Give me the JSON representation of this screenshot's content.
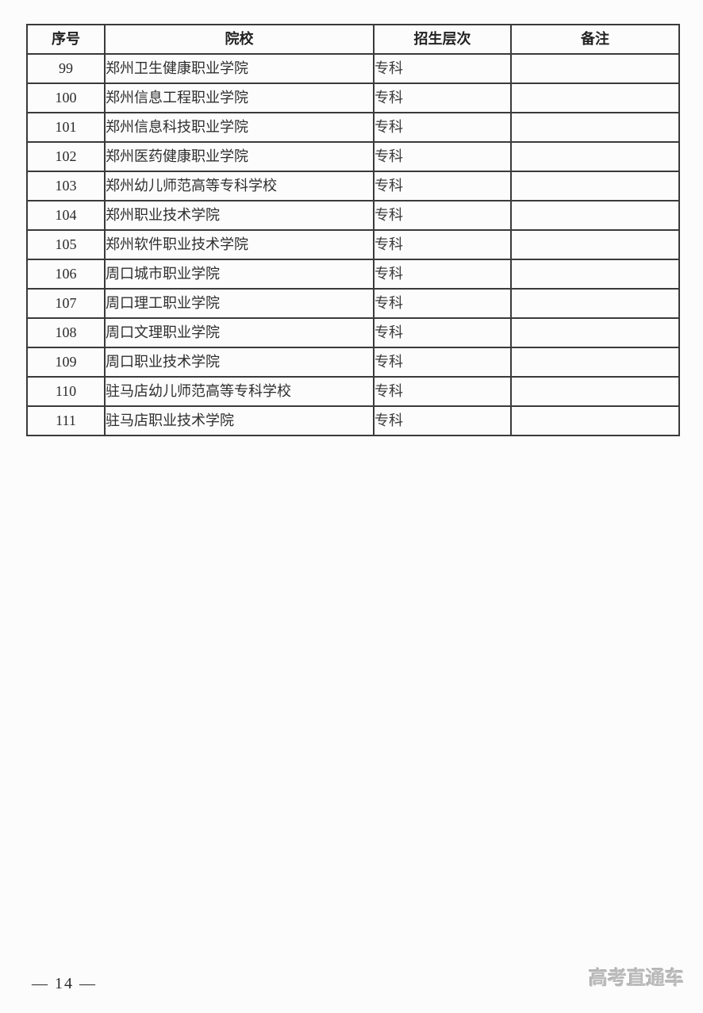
{
  "table": {
    "headers": [
      "序号",
      "院校",
      "招生层次",
      "备注"
    ],
    "rows": [
      {
        "no": "99",
        "school": "郑州卫生健康职业学院",
        "level": "专科",
        "remark": ""
      },
      {
        "no": "100",
        "school": "郑州信息工程职业学院",
        "level": "专科",
        "remark": ""
      },
      {
        "no": "101",
        "school": "郑州信息科技职业学院",
        "level": "专科",
        "remark": ""
      },
      {
        "no": "102",
        "school": "郑州医药健康职业学院",
        "level": "专科",
        "remark": ""
      },
      {
        "no": "103",
        "school": "郑州幼儿师范高等专科学校",
        "level": "专科",
        "remark": ""
      },
      {
        "no": "104",
        "school": "郑州职业技术学院",
        "level": "专科",
        "remark": ""
      },
      {
        "no": "105",
        "school": "郑州软件职业技术学院",
        "level": "专科",
        "remark": ""
      },
      {
        "no": "106",
        "school": "周口城市职业学院",
        "level": "专科",
        "remark": ""
      },
      {
        "no": "107",
        "school": "周口理工职业学院",
        "level": "专科",
        "remark": ""
      },
      {
        "no": "108",
        "school": "周口文理职业学院",
        "level": "专科",
        "remark": ""
      },
      {
        "no": "109",
        "school": "周口职业技术学院",
        "level": "专科",
        "remark": ""
      },
      {
        "no": "110",
        "school": "驻马店幼儿师范高等专科学校",
        "level": "专科",
        "remark": ""
      },
      {
        "no": "111",
        "school": "驻马店职业技术学院",
        "level": "专科",
        "remark": ""
      }
    ]
  },
  "footer": {
    "page_number": "— 14 —",
    "watermark": "高考直通车"
  }
}
